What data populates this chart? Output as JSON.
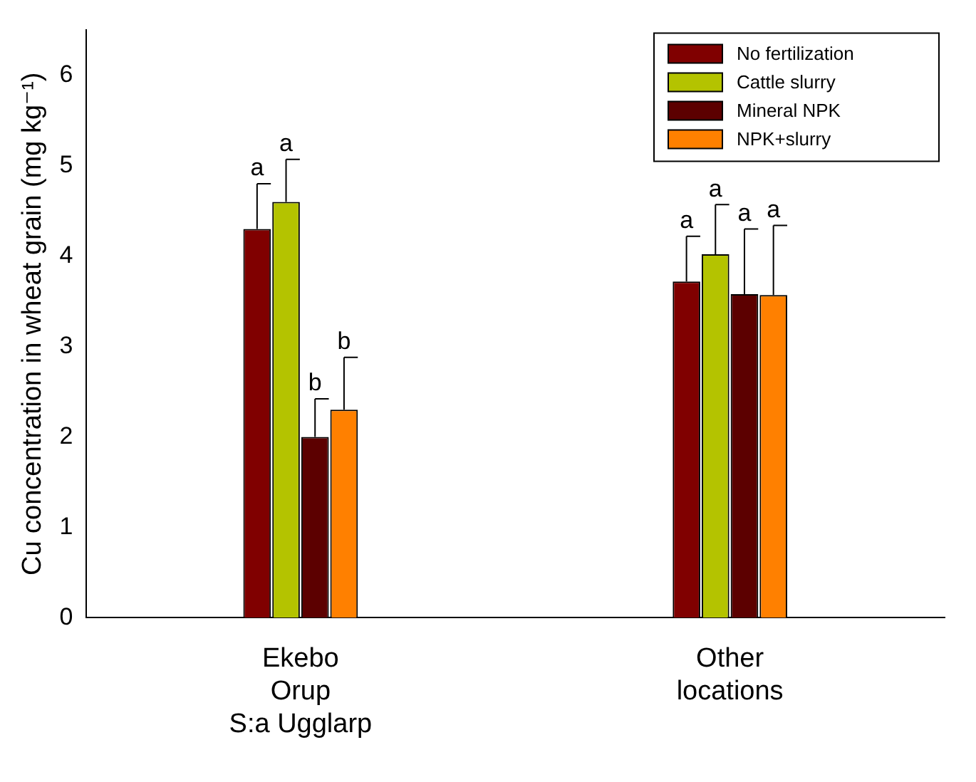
{
  "chart_data": {
    "type": "bar",
    "ylabel": "Cu concentration in wheat grain (mg kg⁻¹)",
    "categories": [
      "Ekebo\nOrup\nS:a Ugglarp",
      "Other\nlocations"
    ],
    "series": [
      {
        "name": "No fertilization",
        "color": "#800000",
        "values": [
          4.3,
          3.72
        ],
        "errors": [
          [
            4.3,
            4.8
          ],
          [
            3.72,
            4.22
          ]
        ],
        "value_labels": [
          "a",
          "a"
        ]
      },
      {
        "name": "Cattle slurry",
        "color": "#b4c300",
        "values": [
          4.6,
          4.02
        ],
        "errors": [
          [
            4.6,
            5.07
          ],
          [
            4.02,
            4.57
          ]
        ],
        "value_labels": [
          "a",
          "a"
        ]
      },
      {
        "name": "Mineral NPK",
        "color": "#5c0000",
        "values": [
          2.0,
          3.58
        ],
        "errors": [
          [
            2.0,
            2.42
          ],
          [
            3.58,
            4.3
          ]
        ],
        "value_labels": [
          "b",
          "a"
        ]
      },
      {
        "name": "NPK+slurry",
        "color": "#ff8000",
        "values": [
          2.3,
          3.57
        ],
        "errors": [
          [
            2.3,
            2.88
          ],
          [
            3.57,
            4.34
          ]
        ],
        "value_labels": [
          "b",
          "a"
        ]
      }
    ],
    "ylim": [
      0,
      6.5
    ],
    "yticks": [
      0,
      1,
      2,
      3,
      4,
      5,
      6
    ],
    "grid": false,
    "legend": "top right"
  }
}
